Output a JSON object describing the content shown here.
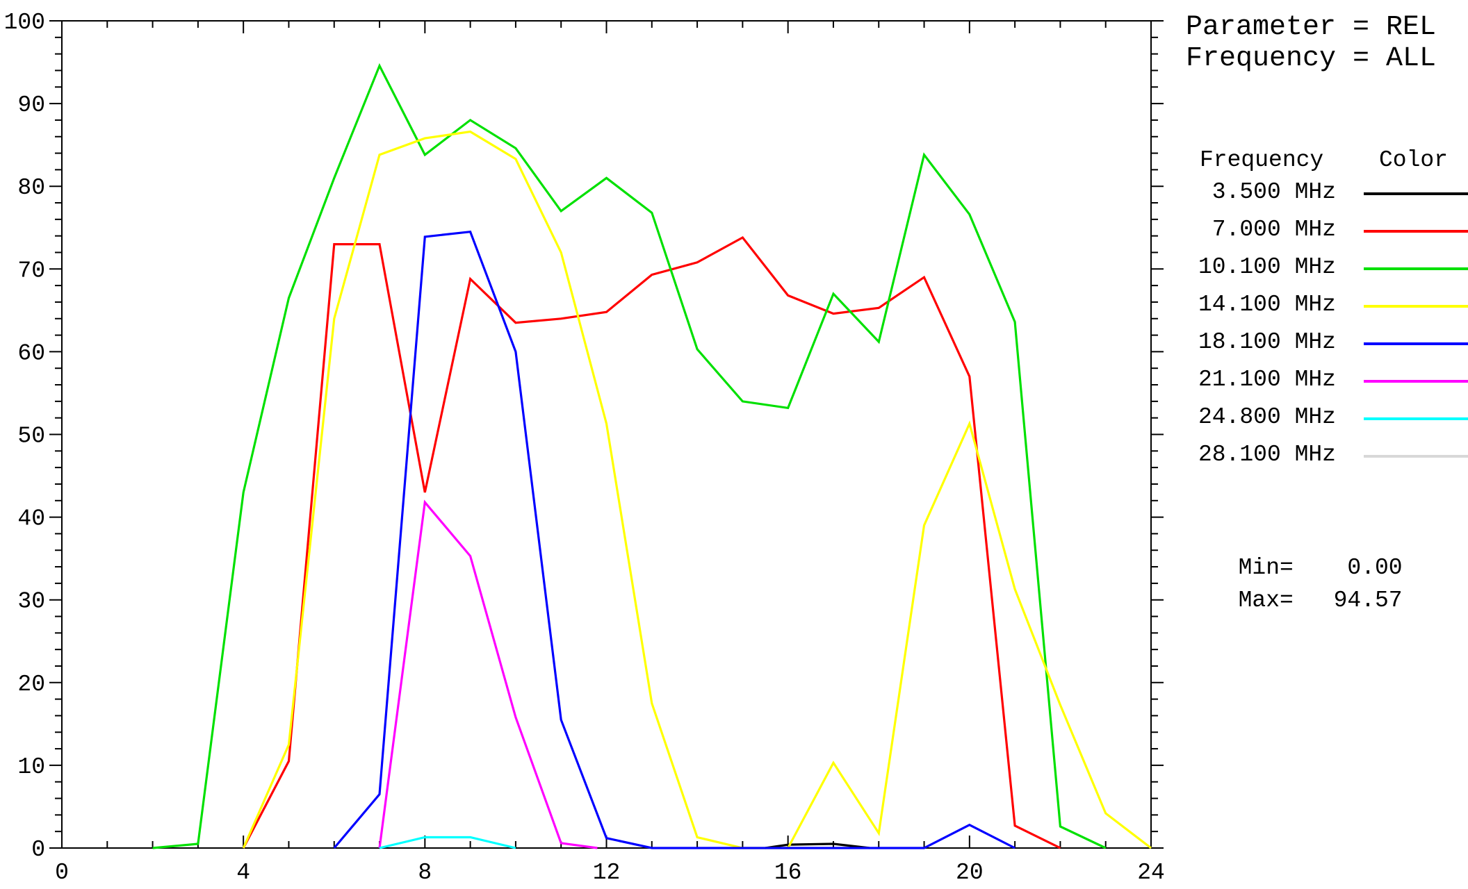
{
  "header": {
    "parameter_line": "Parameter = REL",
    "frequency_line": "Frequency = ALL"
  },
  "legend": {
    "col_frequency": "Frequency",
    "col_color": "Color",
    "items": [
      {
        "label": "3.500 MHz",
        "color": "#000000"
      },
      {
        "label": "7.000 MHz",
        "color": "#ff0000"
      },
      {
        "label": "10.100 MHz",
        "color": "#00e000"
      },
      {
        "label": "14.100 MHz",
        "color": "#ffff00"
      },
      {
        "label": "18.100 MHz",
        "color": "#0000ff"
      },
      {
        "label": "21.100 MHz",
        "color": "#ff00ff"
      },
      {
        "label": "24.800 MHz",
        "color": "#00ffff"
      },
      {
        "label": "28.100 MHz",
        "color": "#d8d8d8"
      }
    ]
  },
  "stats": {
    "min_label": "Min=",
    "min_value": "0.00",
    "max_label": "Max=",
    "max_value": "94.57"
  },
  "chart_data": {
    "type": "line",
    "title": "",
    "xlabel": "",
    "ylabel": "",
    "xlim": [
      0,
      24
    ],
    "ylim": [
      0,
      100
    ],
    "x_ticks": [
      0,
      4,
      8,
      12,
      16,
      20,
      24
    ],
    "y_ticks": [
      0,
      10,
      20,
      30,
      40,
      50,
      60,
      70,
      80,
      90,
      100
    ],
    "grid": false,
    "series": [
      {
        "name": "3.500 MHz",
        "color": "#000000",
        "points": [
          [
            15.5,
            0
          ],
          [
            16,
            0.4
          ],
          [
            17,
            0.5
          ],
          [
            17.8,
            0
          ]
        ]
      },
      {
        "name": "7.000 MHz",
        "color": "#ff0000",
        "points": [
          [
            4,
            0
          ],
          [
            5,
            10.5
          ],
          [
            6,
            73
          ],
          [
            7,
            73
          ],
          [
            8,
            43
          ],
          [
            9,
            68.8
          ],
          [
            10,
            63.5
          ],
          [
            11,
            64
          ],
          [
            12,
            64.8
          ],
          [
            13,
            69.3
          ],
          [
            14,
            70.8
          ],
          [
            15,
            73.8
          ],
          [
            16,
            66.8
          ],
          [
            17,
            64.6
          ],
          [
            18,
            65.3
          ],
          [
            19,
            69
          ],
          [
            20,
            57
          ],
          [
            21,
            2.7
          ],
          [
            22,
            0
          ]
        ]
      },
      {
        "name": "10.100 MHz",
        "color": "#00e000",
        "points": [
          [
            2,
            0
          ],
          [
            3,
            0.5
          ],
          [
            4,
            43
          ],
          [
            5,
            66.5
          ],
          [
            6,
            81
          ],
          [
            7,
            94.57
          ],
          [
            8,
            83.8
          ],
          [
            9,
            88
          ],
          [
            10,
            84.6
          ],
          [
            11,
            77
          ],
          [
            12,
            81
          ],
          [
            13,
            76.8
          ],
          [
            14,
            60.3
          ],
          [
            15,
            54
          ],
          [
            16,
            53.2
          ],
          [
            17,
            67
          ],
          [
            18,
            61.2
          ],
          [
            19,
            83.8
          ],
          [
            20,
            76.6
          ],
          [
            21,
            63.6
          ],
          [
            22,
            2.6
          ],
          [
            23,
            0
          ]
        ]
      },
      {
        "name": "14.100 MHz",
        "color": "#ffff00",
        "points": [
          [
            4,
            0
          ],
          [
            5,
            12.5
          ],
          [
            6,
            64
          ],
          [
            7,
            83.8
          ],
          [
            8,
            85.8
          ],
          [
            9,
            86.6
          ],
          [
            10,
            83.3
          ],
          [
            11,
            72
          ],
          [
            12,
            51.3
          ],
          [
            13,
            17.5
          ],
          [
            14,
            1.3
          ],
          [
            15,
            0
          ],
          [
            16,
            0
          ],
          [
            17,
            10.3
          ],
          [
            18,
            1.8
          ],
          [
            19,
            39
          ],
          [
            20,
            51.3
          ],
          [
            21,
            31.3
          ],
          [
            22,
            17.3
          ],
          [
            23,
            4.2
          ],
          [
            24,
            0
          ]
        ]
      },
      {
        "name": "18.100 MHz",
        "color": "#0000ff",
        "points": [
          [
            6,
            0
          ],
          [
            7,
            6.5
          ],
          [
            8,
            73.9
          ],
          [
            9,
            74.5
          ],
          [
            10,
            60
          ],
          [
            11,
            15.5
          ],
          [
            12,
            1.2
          ],
          [
            13,
            0
          ],
          [
            19,
            0
          ],
          [
            20,
            2.8
          ],
          [
            21,
            0
          ]
        ]
      },
      {
        "name": "21.100 MHz",
        "color": "#ff00ff",
        "points": [
          [
            7,
            0
          ],
          [
            8,
            41.8
          ],
          [
            9,
            35.3
          ],
          [
            10,
            15.8
          ],
          [
            11,
            0.6
          ],
          [
            11.8,
            0
          ]
        ]
      },
      {
        "name": "24.800 MHz",
        "color": "#00ffff",
        "points": [
          [
            7,
            0
          ],
          [
            8,
            1.3
          ],
          [
            9,
            1.3
          ],
          [
            10,
            0
          ]
        ]
      },
      {
        "name": "28.100 MHz",
        "color": "#d8d8d8",
        "points": []
      }
    ]
  }
}
